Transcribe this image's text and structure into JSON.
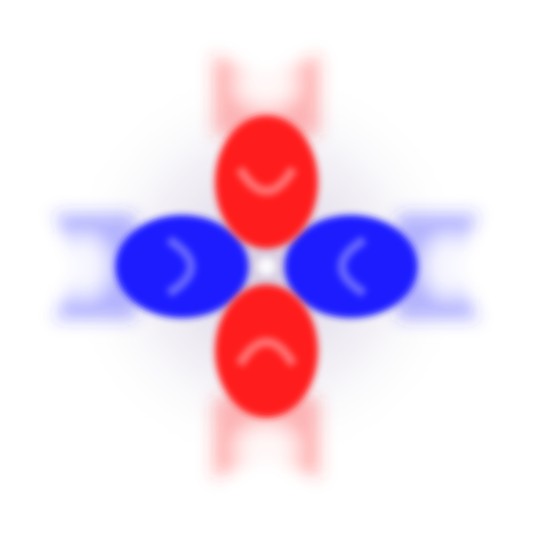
{
  "colors": {
    "background": "#ffffff",
    "lobe_positive": "#ff1a1a",
    "lobe_negative": "#1a1aff",
    "center_highlight": "#ffffff"
  },
  "lobes": [
    {
      "name": "top",
      "phase": "positive"
    },
    {
      "name": "bottom",
      "phase": "positive"
    },
    {
      "name": "left",
      "phase": "negative"
    },
    {
      "name": "right",
      "phase": "negative"
    }
  ]
}
